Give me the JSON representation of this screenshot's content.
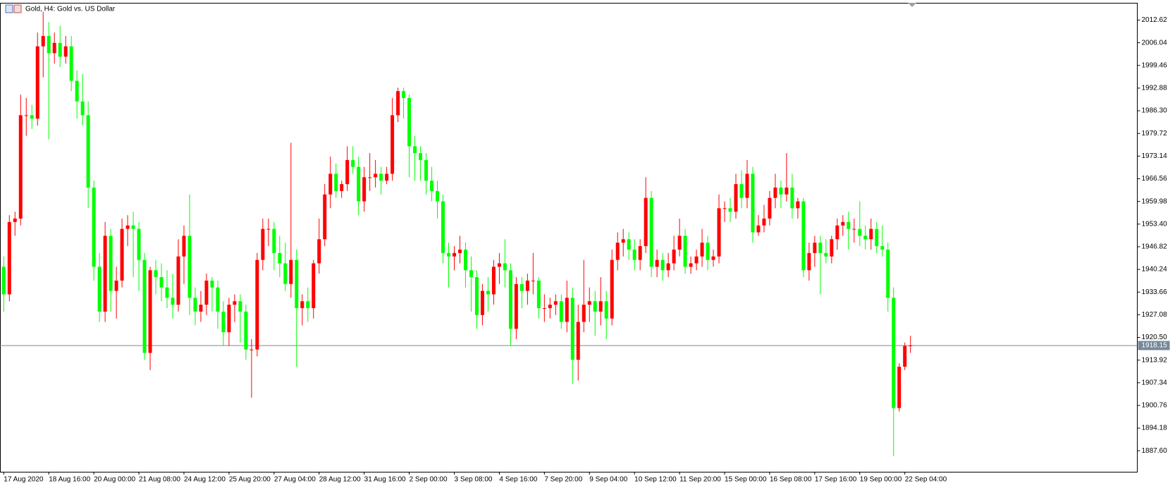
{
  "chart_data": {
    "type": "candlestick",
    "title": "Gold, H4:  Gold vs. US Dollar",
    "categories": [
      "17 Aug 2020",
      null,
      null,
      null,
      null,
      null,
      null,
      null,
      "18 Aug 16:00",
      null,
      null,
      null,
      null,
      null,
      null,
      null,
      "20 Aug 00:00",
      null,
      null,
      null,
      null,
      null,
      null,
      null,
      "21 Aug 08:00",
      null,
      null,
      null,
      null,
      null,
      null,
      null,
      "24 Aug 12:00",
      null,
      null,
      null,
      null,
      null,
      null,
      null,
      "25 Aug 20:00",
      null,
      null,
      null,
      null,
      null,
      null,
      null,
      "27 Aug 04:00",
      null,
      null,
      null,
      null,
      null,
      null,
      null,
      "28 Aug 12:00",
      null,
      null,
      null,
      null,
      null,
      null,
      null,
      "31 Aug 16:00",
      null,
      null,
      null,
      null,
      null,
      null,
      null,
      "2 Sep 00:00",
      null,
      null,
      null,
      null,
      null,
      null,
      null,
      "3 Sep 08:00",
      null,
      null,
      null,
      null,
      null,
      null,
      null,
      "4 Sep 16:00",
      null,
      null,
      null,
      null,
      null,
      null,
      null,
      "7 Sep 20:00",
      null,
      null,
      null,
      null,
      null,
      null,
      null,
      "9 Sep 04:00",
      null,
      null,
      null,
      null,
      null,
      null,
      null,
      "10 Sep 12:00",
      null,
      null,
      null,
      null,
      null,
      null,
      null,
      "11 Sep 20:00",
      null,
      null,
      null,
      null,
      null,
      null,
      null,
      "15 Sep 00:00",
      null,
      null,
      null,
      null,
      null,
      null,
      null,
      "16 Sep 08:00",
      null,
      null,
      null,
      null,
      null,
      null,
      null,
      "17 Sep 16:00",
      null,
      null,
      null,
      null,
      null,
      null,
      null,
      "19 Sep 00:00",
      null,
      null,
      null,
      null,
      null,
      null,
      null,
      "22 Sep 04:00",
      null
    ],
    "ohlc": [
      [
        1941,
        1944,
        1928,
        1933
      ],
      [
        1933,
        1956,
        1931,
        1954
      ],
      [
        1954,
        1957,
        1950,
        1955
      ],
      [
        1955,
        1991,
        1953,
        1985
      ],
      [
        1985,
        1990,
        1979,
        1985
      ],
      [
        1985,
        1988,
        1981,
        1984
      ],
      [
        1984,
        2009,
        1982,
        2005
      ],
      [
        2005,
        2015,
        1996,
        2008
      ],
      [
        2008,
        2012,
        1978,
        2003
      ],
      [
        2003,
        2009,
        2000,
        2006
      ],
      [
        2006,
        2011,
        1999,
        2002
      ],
      [
        2002,
        2008,
        2000,
        2005
      ],
      [
        2005,
        2008,
        1992,
        1995
      ],
      [
        1995,
        1998,
        1984,
        1989
      ],
      [
        1989,
        1997,
        1982,
        1985
      ],
      [
        1985,
        1989,
        1958,
        1964
      ],
      [
        1964,
        1966,
        1937,
        1941
      ],
      [
        1941,
        1945,
        1925,
        1928
      ],
      [
        1928,
        1954,
        1925,
        1950
      ],
      [
        1950,
        1952,
        1928,
        1934
      ],
      [
        1934,
        1941,
        1926,
        1937
      ],
      [
        1937,
        1955,
        1935,
        1952
      ],
      [
        1952,
        1956,
        1947,
        1953
      ],
      [
        1953,
        1957,
        1938,
        1952
      ],
      [
        1952,
        1954,
        1934,
        1943
      ],
      [
        1943,
        1945,
        1914,
        1916
      ],
      [
        1916,
        1941,
        1911,
        1940
      ],
      [
        1940,
        1943,
        1933,
        1938
      ],
      [
        1938,
        1942,
        1931,
        1935
      ],
      [
        1935,
        1940,
        1929,
        1932
      ],
      [
        1932,
        1939,
        1926,
        1930
      ],
      [
        1930,
        1949,
        1928,
        1944
      ],
      [
        1944,
        1953,
        1936,
        1950
      ],
      [
        1950,
        1962,
        1927,
        1932
      ],
      [
        1932,
        1935,
        1924,
        1928
      ],
      [
        1928,
        1934,
        1925,
        1930
      ],
      [
        1930,
        1939,
        1927,
        1937
      ],
      [
        1937,
        1938,
        1928,
        1935
      ],
      [
        1935,
        1937,
        1923,
        1928
      ],
      [
        1928,
        1931,
        1918,
        1922
      ],
      [
        1922,
        1932,
        1918,
        1930
      ],
      [
        1930,
        1933,
        1925,
        1931
      ],
      [
        1931,
        1933,
        1919,
        1928
      ],
      [
        1928,
        1930,
        1914,
        1917
      ],
      [
        1917,
        1920,
        1903,
        1917
      ],
      [
        1917,
        1945,
        1915,
        1943
      ],
      [
        1943,
        1955,
        1940,
        1952
      ],
      [
        1952,
        1955,
        1947,
        1952
      ],
      [
        1952,
        1954,
        1940,
        1945
      ],
      [
        1945,
        1950,
        1938,
        1942
      ],
      [
        1942,
        1948,
        1934,
        1936
      ],
      [
        1936,
        1977,
        1932,
        1943
      ],
      [
        1943,
        1946,
        1912,
        1929
      ],
      [
        1929,
        1933,
        1924,
        1931
      ],
      [
        1931,
        1935,
        1925,
        1929
      ],
      [
        1929,
        1943,
        1926,
        1942
      ],
      [
        1942,
        1955,
        1939,
        1949
      ],
      [
        1949,
        1965,
        1947,
        1962
      ],
      [
        1962,
        1973,
        1958,
        1968
      ],
      [
        1968,
        1971,
        1961,
        1963
      ],
      [
        1963,
        1966,
        1961,
        1965
      ],
      [
        1965,
        1976,
        1963,
        1972
      ],
      [
        1972,
        1976,
        1968,
        1970
      ],
      [
        1970,
        1973,
        1956,
        1960
      ],
      [
        1960,
        1970,
        1957,
        1967
      ],
      [
        1967,
        1974,
        1963,
        1967
      ],
      [
        1967,
        1972,
        1964,
        1968
      ],
      [
        1968,
        1970,
        1962,
        1966
      ],
      [
        1966,
        1970,
        1965,
        1968
      ],
      [
        1968,
        1990,
        1966,
        1985
      ],
      [
        1985,
        1993,
        1983,
        1992
      ],
      [
        1992,
        1993,
        1984,
        1990
      ],
      [
        1990,
        1991,
        1967,
        1976
      ],
      [
        1976,
        1979,
        1966,
        1974
      ],
      [
        1974,
        1976,
        1966,
        1972
      ],
      [
        1972,
        1974,
        1962,
        1966
      ],
      [
        1966,
        1970,
        1960,
        1963
      ],
      [
        1963,
        1966,
        1955,
        1960
      ],
      [
        1960,
        1962,
        1942,
        1945
      ],
      [
        1945,
        1948,
        1935,
        1944
      ],
      [
        1944,
        1947,
        1940,
        1945
      ],
      [
        1945,
        1950,
        1942,
        1946
      ],
      [
        1946,
        1948,
        1935,
        1940
      ],
      [
        1940,
        1944,
        1928,
        1938
      ],
      [
        1938,
        1940,
        1923,
        1927
      ],
      [
        1927,
        1936,
        1924,
        1934
      ],
      [
        1934,
        1938,
        1928,
        1933
      ],
      [
        1933,
        1943,
        1930,
        1941
      ],
      [
        1941,
        1945,
        1936,
        1942
      ],
      [
        1942,
        1949,
        1935,
        1940
      ],
      [
        1940,
        1942,
        1918,
        1923
      ],
      [
        1923,
        1938,
        1920,
        1936
      ],
      [
        1936,
        1938,
        1929,
        1934
      ],
      [
        1934,
        1939,
        1930,
        1937
      ],
      [
        1937,
        1945,
        1933,
        1937
      ],
      [
        1937,
        1938,
        1926,
        1929
      ],
      [
        1929,
        1933,
        1925,
        1929
      ],
      [
        1929,
        1932,
        1926,
        1930
      ],
      [
        1930,
        1933,
        1927,
        1931
      ],
      [
        1931,
        1933,
        1923,
        1925
      ],
      [
        1925,
        1937,
        1922,
        1932
      ],
      [
        1932,
        1935,
        1907,
        1914
      ],
      [
        1914,
        1930,
        1908,
        1925
      ],
      [
        1925,
        1943,
        1922,
        1930
      ],
      [
        1930,
        1935,
        1925,
        1931
      ],
      [
        1931,
        1934,
        1921,
        1928
      ],
      [
        1928,
        1938,
        1924,
        1931
      ],
      [
        1931,
        1934,
        1920,
        1926
      ],
      [
        1926,
        1946,
        1924,
        1943
      ],
      [
        1943,
        1951,
        1940,
        1948
      ],
      [
        1948,
        1952,
        1944,
        1949
      ],
      [
        1949,
        1951,
        1943,
        1946
      ],
      [
        1946,
        1949,
        1940,
        1943
      ],
      [
        1943,
        1949,
        1940,
        1947
      ],
      [
        1947,
        1967,
        1945,
        1961
      ],
      [
        1961,
        1963,
        1938,
        1941
      ],
      [
        1941,
        1946,
        1938,
        1943
      ],
      [
        1943,
        1945,
        1937,
        1940
      ],
      [
        1940,
        1945,
        1938,
        1942
      ],
      [
        1942,
        1950,
        1940,
        1946
      ],
      [
        1946,
        1955,
        1944,
        1950
      ],
      [
        1950,
        1952,
        1939,
        1941
      ],
      [
        1941,
        1944,
        1939,
        1942
      ],
      [
        1942,
        1946,
        1940,
        1944
      ],
      [
        1944,
        1952,
        1941,
        1948
      ],
      [
        1948,
        1950,
        1940,
        1943
      ],
      [
        1943,
        1946,
        1941,
        1944
      ],
      [
        1944,
        1962,
        1942,
        1958
      ],
      [
        1958,
        1960,
        1954,
        1958
      ],
      [
        1958,
        1961,
        1954,
        1957
      ],
      [
        1957,
        1968,
        1955,
        1965
      ],
      [
        1965,
        1969,
        1958,
        1961
      ],
      [
        1961,
        1972,
        1958,
        1968
      ],
      [
        1968,
        1970,
        1948,
        1951
      ],
      [
        1951,
        1956,
        1950,
        1953
      ],
      [
        1953,
        1959,
        1951,
        1955
      ],
      [
        1955,
        1963,
        1953,
        1961
      ],
      [
        1961,
        1968,
        1958,
        1964
      ],
      [
        1964,
        1966,
        1958,
        1962
      ],
      [
        1962,
        1974,
        1960,
        1964
      ],
      [
        1964,
        1968,
        1955,
        1958
      ],
      [
        1958,
        1961,
        1955,
        1960
      ],
      [
        1960,
        1961,
        1938,
        1940
      ],
      [
        1940,
        1948,
        1937,
        1945
      ],
      [
        1945,
        1950,
        1941,
        1948
      ],
      [
        1948,
        1950,
        1933,
        1945
      ],
      [
        1945,
        1949,
        1942,
        1944
      ],
      [
        1944,
        1950,
        1942,
        1949
      ],
      [
        1949,
        1955,
        1946,
        1953
      ],
      [
        1953,
        1956,
        1950,
        1954
      ],
      [
        1954,
        1957,
        1946,
        1952
      ],
      [
        1952,
        1955,
        1948,
        1952
      ],
      [
        1952,
        1960,
        1947,
        1950
      ],
      [
        1950,
        1953,
        1946,
        1949
      ],
      [
        1949,
        1955,
        1946,
        1952
      ],
      [
        1952,
        1954,
        1945,
        1947
      ],
      [
        1947,
        1953,
        1944,
        1946
      ],
      [
        1946,
        1948,
        1928,
        1932
      ],
      [
        1932,
        1935,
        1886,
        1900
      ],
      [
        1900,
        1913,
        1899,
        1912
      ],
      [
        1912,
        1919,
        1911,
        1918
      ],
      [
        1918,
        1921,
        1916,
        1918.15
      ]
    ],
    "up_color": "#ff0000",
    "down_color": "#00ff00",
    "current_price": 1918.15,
    "current_price_color": "#778899",
    "ylim": [
      1881.5,
      2017.63
    ],
    "yticks": [
      2012.62,
      2006.04,
      1999.46,
      1992.88,
      {
        "value": 1986.3,
        "label": "1986.30"
      },
      1979.72,
      1973.14,
      1966.56,
      1959.98,
      {
        "value": 1953.4,
        "label": "1953.40"
      },
      1946.82,
      1940.24,
      1933.66,
      1927.08,
      {
        "value": 1920.5,
        "label": "1920.50"
      },
      1913.92,
      1907.34,
      1900.76,
      1894.18,
      {
        "value": 1887.6,
        "label": "1887.60"
      }
    ],
    "grid": false
  }
}
